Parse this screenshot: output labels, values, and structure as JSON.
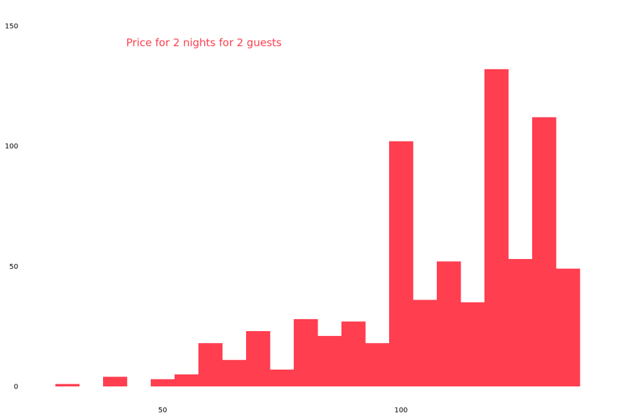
{
  "chart_data": {
    "type": "bar",
    "title": "Price for 2 nights for 2 guests",
    "xlabel": "",
    "ylabel": "",
    "bin_width": 5,
    "bins": [
      {
        "start": 27.5,
        "end": 32.5,
        "value": 1
      },
      {
        "start": 32.5,
        "end": 37.5,
        "value": 0
      },
      {
        "start": 37.5,
        "end": 42.5,
        "value": 4
      },
      {
        "start": 42.5,
        "end": 47.5,
        "value": 0
      },
      {
        "start": 47.5,
        "end": 52.5,
        "value": 3
      },
      {
        "start": 52.5,
        "end": 57.5,
        "value": 5
      },
      {
        "start": 57.5,
        "end": 62.5,
        "value": 18
      },
      {
        "start": 62.5,
        "end": 67.5,
        "value": 11
      },
      {
        "start": 67.5,
        "end": 72.5,
        "value": 23
      },
      {
        "start": 72.5,
        "end": 77.5,
        "value": 7
      },
      {
        "start": 77.5,
        "end": 82.5,
        "value": 28
      },
      {
        "start": 82.5,
        "end": 87.5,
        "value": 21
      },
      {
        "start": 87.5,
        "end": 92.5,
        "value": 27
      },
      {
        "start": 92.5,
        "end": 97.5,
        "value": 18
      },
      {
        "start": 97.5,
        "end": 102.5,
        "value": 102
      },
      {
        "start": 102.5,
        "end": 107.5,
        "value": 36
      },
      {
        "start": 107.5,
        "end": 112.5,
        "value": 52
      },
      {
        "start": 112.5,
        "end": 117.5,
        "value": 35
      },
      {
        "start": 117.5,
        "end": 122.5,
        "value": 132
      },
      {
        "start": 122.5,
        "end": 127.5,
        "value": 53
      },
      {
        "start": 127.5,
        "end": 132.5,
        "value": 112
      },
      {
        "start": 132.5,
        "end": 137.5,
        "value": 49
      }
    ],
    "xlim": [
      20,
      145
    ],
    "ylim": [
      0,
      150
    ],
    "x_ticks": [
      50,
      100
    ],
    "y_ticks": [
      0,
      50,
      100,
      150
    ],
    "grid": false,
    "legend": "none",
    "bar_color": "#FF3E4F",
    "title_color": "#FF3E4F"
  }
}
